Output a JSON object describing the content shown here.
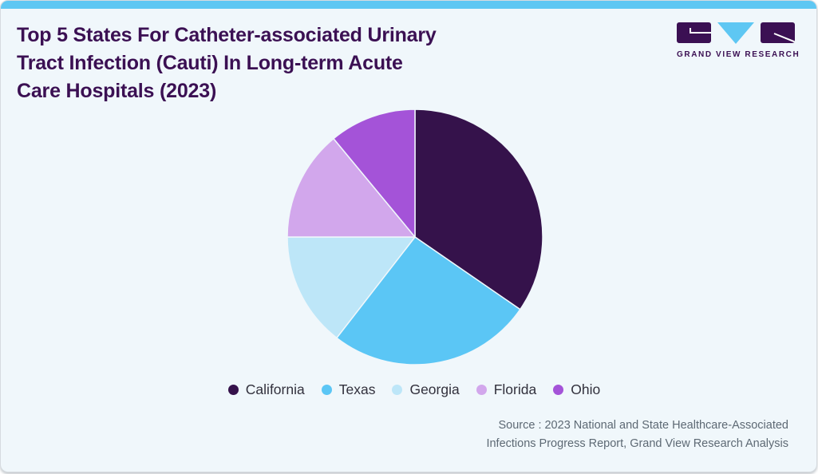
{
  "theme": {
    "accent": "#5ec7f3",
    "bg": "#f0f7fb",
    "title_color": "#3b1053",
    "legend_text": "#32313d",
    "source_text": "#5d6974"
  },
  "header": {
    "title": "Top 5 States For Catheter-associated Urinary\nTract Infection (Cauti) In Long-term Acute\nCare Hospitals (2023)",
    "logo_text": "GRAND VIEW RESEARCH"
  },
  "chart_data": {
    "type": "pie",
    "title": "Top 5 States For Catheter-associated Urinary Tract Infection (Cauti) In Long-term Acute Care Hospitals (2023)",
    "categories": [
      "California",
      "Texas",
      "Georgia",
      "Florida",
      "Ohio"
    ],
    "values": [
      34.6,
      25.9,
      14.5,
      14.0,
      11.0
    ],
    "unit": "percent share (estimated from slice angles, no data labels shown)",
    "colors": [
      "#35124b",
      "#5bc6f5",
      "#bde6f8",
      "#d2a7ec",
      "#a453d8"
    ],
    "start_angle_deg": 0,
    "direction": "clockwise",
    "legend_position": "bottom",
    "data_labels": false
  },
  "source": {
    "text": "Source : 2023 National and State Healthcare-Associated\nInfections Progress Report, Grand View Research Analysis"
  }
}
